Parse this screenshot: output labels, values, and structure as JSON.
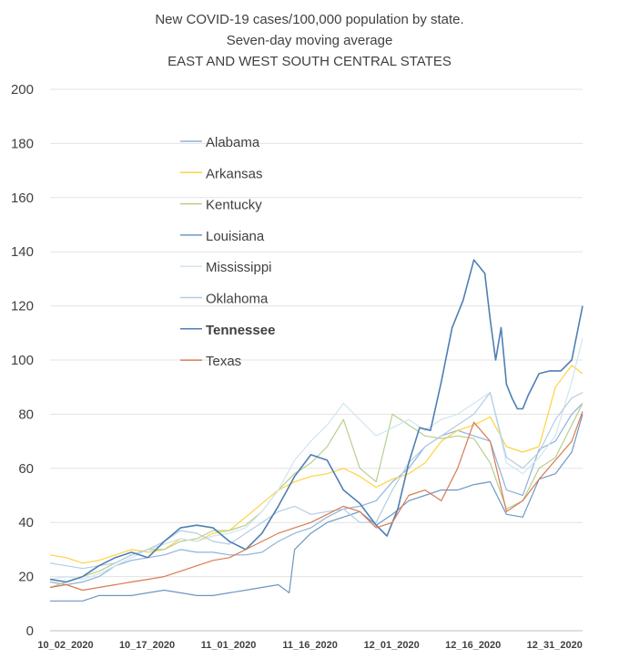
{
  "chart_data": {
    "type": "line",
    "title": "New COVID-19 cases/100,000 population by state.",
    "subtitle": "Seven-day moving average",
    "subtitle2": "EAST AND WEST SOUTH CENTRAL STATES",
    "xlabel": "",
    "ylabel": "",
    "ylim": [
      0,
      200
    ],
    "yticks": [
      0,
      20,
      40,
      60,
      80,
      100,
      120,
      140,
      160,
      180,
      200
    ],
    "xtick_labels": [
      "10_02_2020",
      "10_17_2020",
      "11_01_2020",
      "11_16_2020",
      "12_01_2020",
      "12_16_2020",
      "12_31_2020"
    ],
    "x_day_index_of_ticks": [
      0,
      15,
      30,
      45,
      60,
      75,
      90
    ],
    "x_range_days": [
      0,
      98
    ],
    "grid": "horizontal",
    "legend_position": "upper-left",
    "series": [
      {
        "name": "Alabama",
        "color": "#8fb3d9",
        "bold": false,
        "x": [
          0,
          3,
          6,
          9,
          12,
          15,
          18,
          21,
          24,
          27,
          30,
          33,
          36,
          39,
          42,
          45,
          48,
          51,
          54,
          57,
          60,
          63,
          66,
          69,
          72,
          75,
          78,
          81,
          84,
          87,
          90,
          93,
          96,
          98
        ],
        "y": [
          18,
          17,
          18,
          20,
          24,
          26,
          27,
          28,
          30,
          29,
          29,
          28,
          28,
          29,
          33,
          36,
          38,
          42,
          45,
          46,
          48,
          55,
          60,
          68,
          72,
          74,
          72,
          70,
          52,
          50,
          67,
          70,
          80,
          84
        ]
      },
      {
        "name": "Arkansas",
        "color": "#ffd23f",
        "bold": false,
        "x": [
          0,
          3,
          6,
          9,
          12,
          15,
          18,
          21,
          24,
          27,
          30,
          33,
          36,
          39,
          42,
          45,
          48,
          51,
          54,
          57,
          60,
          63,
          66,
          69,
          72,
          75,
          78,
          81,
          84,
          87,
          90,
          93,
          96,
          98
        ],
        "y": [
          28,
          27,
          25,
          26,
          28,
          30,
          29,
          30,
          34,
          33,
          36,
          37,
          42,
          47,
          52,
          55,
          57,
          58,
          60,
          57,
          53,
          56,
          58,
          62,
          70,
          74,
          76,
          79,
          68,
          66,
          68,
          90,
          98,
          95
        ]
      },
      {
        "name": "Kentucky",
        "color": "#b7cf8e",
        "bold": false,
        "x": [
          0,
          3,
          6,
          9,
          12,
          15,
          18,
          21,
          24,
          27,
          30,
          33,
          36,
          39,
          42,
          45,
          48,
          51,
          54,
          57,
          60,
          63,
          66,
          69,
          72,
          75,
          78,
          81,
          84,
          87,
          90,
          93,
          96,
          98
        ],
        "y": [
          16,
          18,
          20,
          22,
          25,
          28,
          30,
          30,
          33,
          34,
          37,
          37,
          39,
          44,
          52,
          58,
          62,
          68,
          78,
          60,
          55,
          80,
          76,
          72,
          71,
          72,
          71,
          62,
          45,
          48,
          60,
          64,
          76,
          84
        ]
      },
      {
        "name": "Louisiana",
        "color": "#6e97c2",
        "bold": false,
        "x": [
          0,
          3,
          6,
          9,
          12,
          15,
          18,
          21,
          24,
          27,
          30,
          33,
          36,
          39,
          42,
          44,
          45,
          48,
          51,
          54,
          57,
          60,
          63,
          66,
          69,
          72,
          75,
          78,
          81,
          84,
          87,
          90,
          93,
          96,
          98
        ],
        "y": [
          11,
          11,
          11,
          13,
          13,
          13,
          14,
          15,
          14,
          13,
          13,
          14,
          15,
          16,
          17,
          14,
          30,
          36,
          40,
          42,
          44,
          39,
          43,
          48,
          50,
          52,
          52,
          54,
          55,
          43,
          42,
          56,
          58,
          66,
          80
        ]
      },
      {
        "name": "Mississippi",
        "color": "#cfe6ef",
        "bold": false,
        "x": [
          0,
          3,
          6,
          9,
          12,
          15,
          18,
          21,
          24,
          27,
          30,
          33,
          36,
          39,
          42,
          45,
          48,
          51,
          54,
          57,
          60,
          63,
          66,
          69,
          72,
          75,
          78,
          81,
          84,
          87,
          90,
          93,
          96,
          98
        ],
        "y": [
          19,
          20,
          19,
          21,
          24,
          27,
          30,
          32,
          34,
          33,
          35,
          36,
          38,
          44,
          52,
          63,
          70,
          76,
          84,
          78,
          72,
          75,
          78,
          74,
          78,
          80,
          84,
          88,
          62,
          58,
          64,
          72,
          92,
          108
        ]
      },
      {
        "name": "Oklahoma",
        "color": "#b4cde3",
        "bold": false,
        "x": [
          0,
          3,
          6,
          9,
          12,
          15,
          18,
          21,
          24,
          27,
          30,
          33,
          36,
          39,
          42,
          45,
          48,
          51,
          54,
          57,
          60,
          63,
          66,
          69,
          72,
          75,
          78,
          81,
          84,
          87,
          90,
          93,
          96,
          98
        ],
        "y": [
          25,
          24,
          23,
          24,
          25,
          28,
          30,
          33,
          37,
          36,
          33,
          32,
          36,
          40,
          44,
          46,
          43,
          44,
          45,
          40,
          40,
          52,
          62,
          68,
          72,
          76,
          80,
          88,
          64,
          60,
          66,
          78,
          86,
          88
        ]
      },
      {
        "name": "Tennessee",
        "color": "#4f7fb3",
        "bold": true,
        "x": [
          0,
          3,
          6,
          9,
          12,
          15,
          18,
          21,
          24,
          27,
          30,
          33,
          36,
          39,
          42,
          45,
          48,
          51,
          54,
          57,
          60,
          62,
          64,
          66,
          68,
          70,
          72,
          74,
          76,
          78,
          80,
          81,
          82,
          83,
          84,
          85,
          86,
          87,
          88,
          90,
          92,
          94,
          96,
          98
        ],
        "y": [
          19,
          18,
          20,
          24,
          27,
          29,
          27,
          33,
          38,
          39,
          38,
          33,
          30,
          36,
          46,
          57,
          65,
          63,
          52,
          47,
          39,
          35,
          45,
          62,
          75,
          74,
          92,
          112,
          122,
          137,
          132,
          115,
          100,
          112,
          91,
          86,
          82,
          82,
          87,
          95,
          96,
          96,
          100,
          120
        ]
      },
      {
        "name": "Texas",
        "color": "#d77b52",
        "bold": false,
        "x": [
          0,
          3,
          6,
          9,
          12,
          15,
          18,
          21,
          24,
          27,
          30,
          33,
          36,
          39,
          42,
          45,
          48,
          51,
          54,
          57,
          60,
          63,
          66,
          69,
          72,
          75,
          78,
          81,
          84,
          87,
          90,
          93,
          96,
          98
        ],
        "y": [
          16,
          17,
          15,
          16,
          17,
          18,
          19,
          20,
          22,
          24,
          26,
          27,
          30,
          33,
          36,
          38,
          40,
          43,
          46,
          44,
          38,
          40,
          50,
          52,
          48,
          60,
          77,
          70,
          44,
          48,
          56,
          63,
          70,
          81
        ]
      }
    ]
  }
}
